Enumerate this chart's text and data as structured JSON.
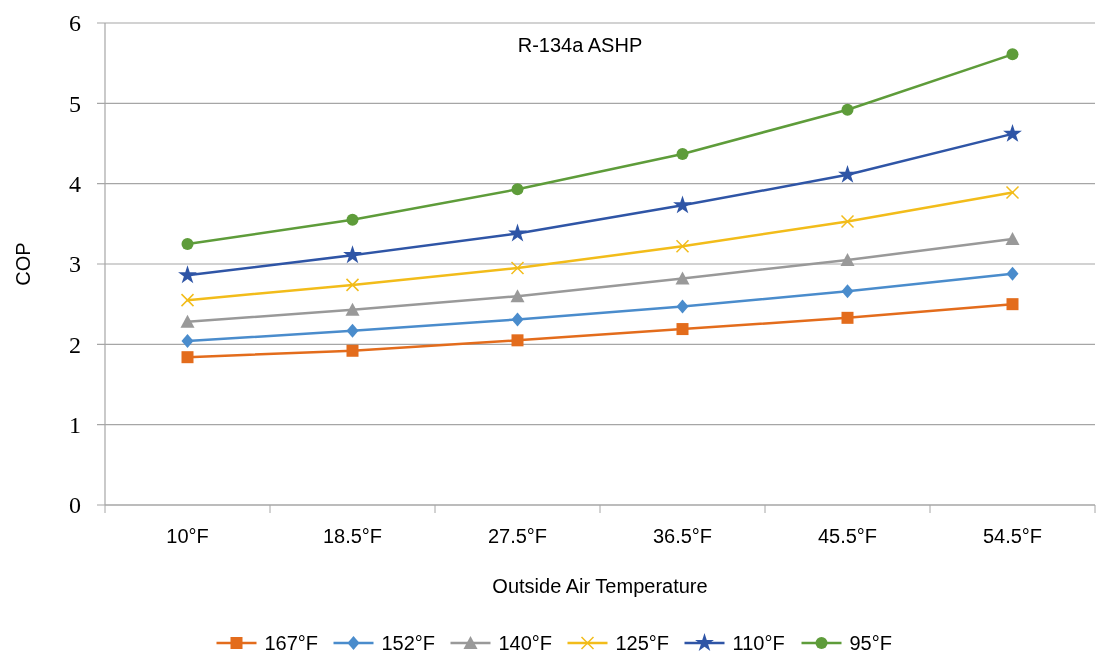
{
  "chart_data": {
    "type": "line",
    "title": "R-134a ASHP",
    "xlabel": "Outside Air Temperature",
    "ylabel": "COP",
    "categories": [
      "10°F",
      "18.5°F",
      "27.5°F",
      "36.5°F",
      "45.5°F",
      "54.5°F"
    ],
    "ylim": [
      0,
      6
    ],
    "yticks": [
      0,
      1,
      2,
      3,
      4,
      5,
      6
    ],
    "grid": "y",
    "legend": "bottom",
    "series": [
      {
        "name": "167°F",
        "color": "#e36c1c",
        "marker": "square",
        "values": [
          1.84,
          1.92,
          2.05,
          2.19,
          2.33,
          2.5
        ]
      },
      {
        "name": "152°F",
        "color": "#4a8ccc",
        "marker": "diamond",
        "values": [
          2.04,
          2.17,
          2.31,
          2.47,
          2.66,
          2.88
        ]
      },
      {
        "name": "140°F",
        "color": "#999999",
        "marker": "triangle",
        "values": [
          2.28,
          2.43,
          2.6,
          2.82,
          3.05,
          3.31
        ]
      },
      {
        "name": "125°F",
        "color": "#f2bc1a",
        "marker": "cross",
        "values": [
          2.55,
          2.74,
          2.95,
          3.22,
          3.53,
          3.89
        ]
      },
      {
        "name": "110°F",
        "color": "#2f55a6",
        "marker": "star",
        "values": [
          2.86,
          3.11,
          3.38,
          3.73,
          4.11,
          4.62
        ]
      },
      {
        "name": "95°F",
        "color": "#5e9c3a",
        "marker": "circle",
        "values": [
          3.25,
          3.55,
          3.93,
          4.37,
          4.92,
          5.61
        ]
      }
    ]
  }
}
